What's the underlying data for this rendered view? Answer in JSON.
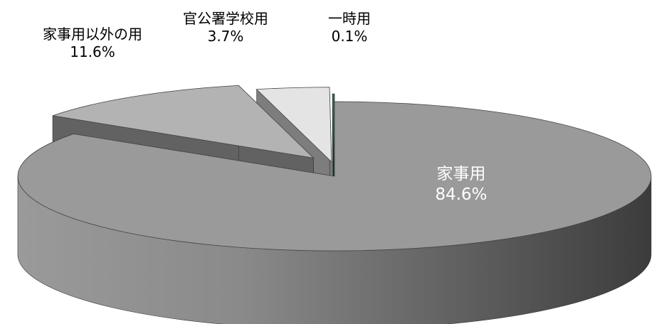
{
  "chart_data": {
    "type": "pie",
    "style": "3d-exploded",
    "slices": [
      {
        "label": "家事用",
        "value_label": "84.6%",
        "value": 84.6,
        "color": "#9a9a9a"
      },
      {
        "label": "家事用以外の用",
        "value_label": "11.6%",
        "value": 11.6,
        "color": "#b3b3b3"
      },
      {
        "label": "官公署学校用",
        "value_label": "3.7%",
        "value": 3.7,
        "color": "#e4e4e4"
      },
      {
        "label": "一時用",
        "value_label": "0.1%",
        "value": 0.1,
        "color": "#1f6f52"
      }
    ]
  }
}
